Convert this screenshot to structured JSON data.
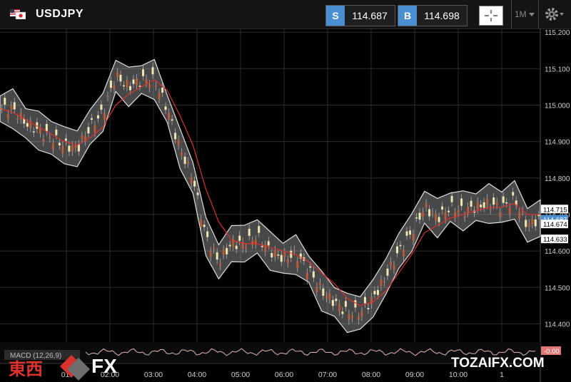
{
  "header": {
    "symbol": "USDJPY",
    "sell": {
      "label": "S",
      "price": "114.687"
    },
    "buy": {
      "label": "B",
      "price": "114.698"
    },
    "interval": "1M"
  },
  "colors": {
    "accent": "#4a8fd1",
    "ma_line": "#e0312c",
    "band_fill": "#cfcfcf",
    "bullish": "#f2e6b0",
    "bearish": "#b85b3b"
  },
  "icons": [
    "us-flag-icon",
    "jp-flag-icon",
    "crosshair-icon",
    "dropdown-arrow-icon",
    "gear-icon"
  ],
  "chart_data": {
    "type": "line",
    "title": "USDJPY",
    "ylim": [
      114.35,
      115.21
    ],
    "y_ticks": [
      "115.200",
      "115.100",
      "115.000",
      "114.900",
      "114.800",
      "114.700",
      "114.600",
      "114.500",
      "114.400"
    ],
    "x_ticks": [
      "01:",
      "02:00",
      "03:00",
      "04:00",
      "05:00",
      "06:00",
      "07:00",
      "08:00",
      "09:00",
      "10:00",
      "1"
    ],
    "price_tags": [
      {
        "label": "114.715",
        "style": "white"
      },
      {
        "label": "114.687",
        "style": "blue"
      },
      {
        "label": "114.674",
        "style": "white"
      },
      {
        "label": "114.633",
        "style": "white"
      }
    ],
    "series": [
      {
        "name": "price",
        "x": [
          "00:00",
          "00:15",
          "00:30",
          "00:45",
          "01:00",
          "01:15",
          "01:30",
          "01:45",
          "02:00",
          "02:15",
          "02:30",
          "02:45",
          "03:00",
          "03:15",
          "03:30",
          "03:45",
          "04:00",
          "04:15",
          "04:30",
          "04:45",
          "05:00",
          "05:15",
          "05:30",
          "05:45",
          "06:00",
          "06:15",
          "06:30",
          "06:45",
          "07:00",
          "07:15",
          "07:30",
          "07:45",
          "08:00",
          "08:15",
          "08:30",
          "08:45",
          "09:00",
          "09:15",
          "09:30",
          "09:45",
          "10:00",
          "10:15",
          "10:30"
        ],
        "values": [
          114.99,
          114.99,
          114.95,
          114.93,
          114.91,
          114.89,
          114.88,
          114.94,
          114.98,
          115.08,
          115.05,
          115.07,
          115.07,
          114.99,
          114.88,
          114.8,
          114.64,
          114.57,
          114.62,
          114.62,
          114.64,
          114.6,
          114.58,
          114.59,
          114.55,
          114.49,
          114.46,
          114.43,
          114.43,
          114.47,
          114.53,
          114.6,
          114.65,
          114.72,
          114.69,
          114.72,
          114.71,
          114.72,
          114.73,
          114.72,
          114.74,
          114.67,
          114.69
        ]
      },
      {
        "name": "moving-average",
        "values": [
          114.99,
          114.98,
          114.96,
          114.94,
          114.92,
          114.9,
          114.89,
          114.91,
          114.94,
          115.0,
          115.03,
          115.05,
          115.07,
          115.04,
          114.97,
          114.89,
          114.77,
          114.68,
          114.63,
          114.62,
          114.62,
          114.61,
          114.6,
          114.59,
          114.57,
          114.54,
          114.51,
          114.47,
          114.45,
          114.46,
          114.49,
          114.54,
          114.59,
          114.65,
          114.67,
          114.69,
          114.7,
          114.71,
          114.72,
          114.72,
          114.73,
          114.7,
          114.7
        ]
      }
    ],
    "indicator": {
      "label": "MACD (12,26,9)",
      "value": "-0.00"
    }
  },
  "watermark": {
    "kanji": "東西",
    "fx": "FX"
  },
  "site": "TOZAIFX.COM"
}
